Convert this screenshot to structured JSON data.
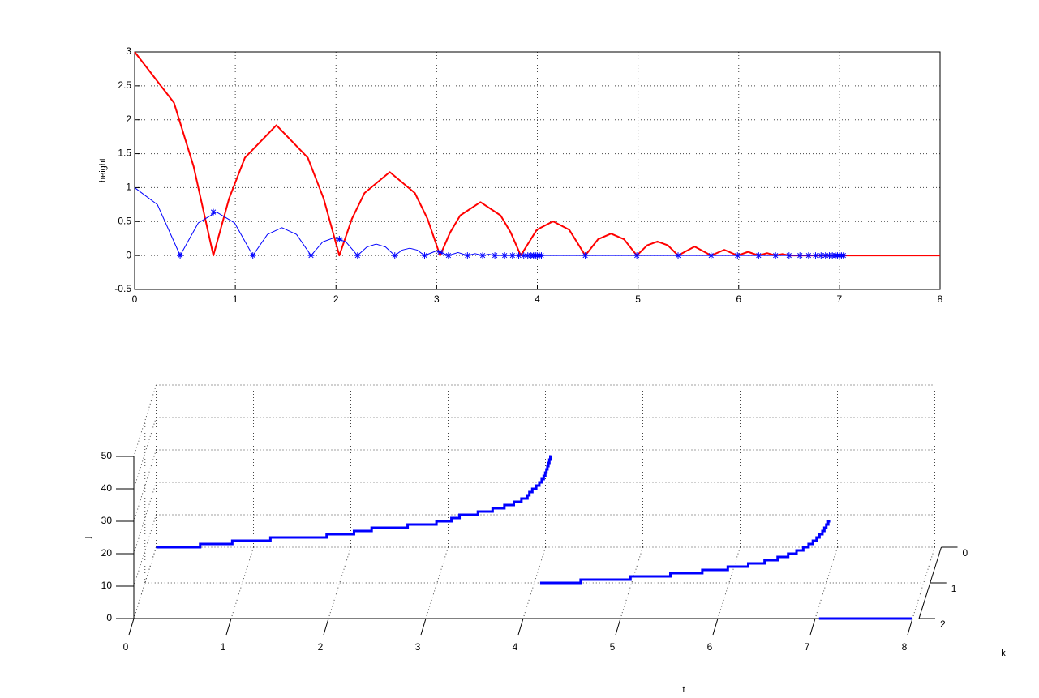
{
  "chart_data": [
    {
      "type": "line",
      "ylabel": "height",
      "xlim": [
        0,
        8
      ],
      "ylim": [
        -0.5,
        3
      ],
      "xticks": [
        0,
        1,
        2,
        3,
        4,
        5,
        6,
        7,
        8
      ],
      "yticks": [
        -0.5,
        0,
        0.5,
        1,
        1.5,
        2,
        2.5,
        3
      ],
      "grid": true,
      "series": [
        {
          "color": "#ff0000",
          "linewidth": 2,
          "x": [
            0,
            0.391,
            0.586,
            0.782,
            0.938,
            1.095,
            1.408,
            1.72,
            1.877,
            2.033,
            2.158,
            2.283,
            2.534,
            2.784,
            2.909,
            3.034,
            3.134,
            3.234,
            3.435,
            3.635,
            3.735,
            3.835,
            3.995,
            4.156,
            4.316,
            4.476,
            4.604,
            4.732,
            4.86,
            4.988,
            5.091,
            5.193,
            5.296,
            5.398,
            5.562,
            5.726,
            5.857,
            5.988,
            6.093,
            6.198,
            6.282,
            6.366,
            6.433,
            6.5,
            7.04,
            8
          ],
          "values": [
            3,
            2.25,
            1.31,
            0,
            0.84,
            1.44,
            1.92,
            1.44,
            0.84,
            0,
            0.54,
            0.92,
            1.229,
            0.92,
            0.54,
            0,
            0.34,
            0.59,
            0.786,
            0.59,
            0.34,
            0,
            0.38,
            0.503,
            0.38,
            0,
            0.24,
            0.322,
            0.24,
            0,
            0.15,
            0.206,
            0.15,
            0,
            0.132,
            0,
            0.084,
            0,
            0.054,
            0,
            0.035,
            0,
            0.022,
            0,
            0,
            0
          ]
        },
        {
          "color": "#0000ff",
          "linewidth": 1,
          "x": [
            0,
            0.226,
            0.452,
            0.632,
            0.813,
            0.993,
            1.174,
            1.319,
            1.463,
            1.608,
            1.752,
            1.868,
            1.983,
            2.099,
            2.214,
            2.307,
            2.399,
            2.492,
            2.584,
            2.658,
            2.732,
            2.806,
            2.88,
            2.999,
            3.117,
            3.212,
            3.306,
            3.382,
            3.457,
            3.518,
            3.578,
            7.04
          ],
          "values": [
            1,
            0.75,
            0,
            0.48,
            0.64,
            0.48,
            0,
            0.31,
            0.41,
            0.31,
            0,
            0.2,
            0.262,
            0.2,
            0,
            0.126,
            0.168,
            0.126,
            0,
            0.08,
            0.107,
            0.08,
            0,
            0.069,
            0,
            0.044,
            0,
            0.028,
            0,
            0.018,
            0,
            0
          ]
        },
        {
          "color": "#0000ff",
          "marker": "*",
          "line": false,
          "x": [
            0.452,
            0.782,
            1.174,
            1.752,
            2.033,
            2.214,
            2.584,
            2.88,
            3.034,
            3.117,
            3.306,
            3.457,
            3.578,
            3.675,
            3.753,
            3.815,
            3.865,
            3.905,
            3.937,
            3.962,
            3.982,
            3.998,
            4.02,
            4.04,
            4.476,
            4.988,
            5.398,
            5.726,
            5.988,
            6.198,
            6.366,
            6.5,
            6.608,
            6.694,
            6.763,
            6.818,
            6.862,
            6.9,
            6.93,
            6.96,
            6.98,
            7,
            7.02,
            7.04
          ],
          "values": [
            0,
            0.64,
            0,
            0,
            0.24,
            0,
            0,
            0,
            0.05,
            0,
            0,
            0,
            0,
            0,
            0,
            0,
            0,
            0,
            0,
            0,
            0,
            0,
            0,
            0,
            0,
            0,
            0,
            0,
            0,
            0,
            0,
            0,
            0,
            0,
            0,
            0,
            0,
            0,
            0,
            0,
            0,
            0,
            0,
            0
          ]
        }
      ]
    },
    {
      "type": "stairs3d",
      "xlabel": "t",
      "ylabel": "j",
      "zlabel": "k",
      "xlim": [
        0,
        8
      ],
      "xticks": [
        0,
        1,
        2,
        3,
        4,
        5,
        6,
        7,
        8
      ],
      "ylim": [
        0,
        50
      ],
      "yticks": [
        0,
        10,
        20,
        30,
        40,
        50
      ],
      "zlim": [
        0,
        2
      ],
      "zticks": [
        0,
        1,
        2
      ],
      "grid": true,
      "series": [
        {
          "color": "#0000ff",
          "k": 0,
          "x": [
            0,
            0.452,
            0.782,
            1.174,
            1.752,
            2.033,
            2.214,
            2.584,
            2.88,
            3.034,
            3.117,
            3.306,
            3.457,
            3.578,
            3.675,
            3.753,
            3.815,
            3.835,
            3.865,
            3.905,
            3.937,
            3.962,
            3.982,
            3.998,
            4.01,
            4.02,
            4.03,
            4.04,
            4.05,
            4.06
          ],
          "values": [
            0,
            1,
            2,
            3,
            4,
            5,
            6,
            7,
            8,
            9,
            10,
            11,
            12,
            13,
            14,
            15,
            16,
            17,
            18,
            19,
            20,
            21,
            22,
            23,
            24,
            25,
            26,
            27,
            28,
            28
          ]
        },
        {
          "color": "#0000ff",
          "k": 1,
          "x": [
            4.06,
            4.476,
            4.988,
            5.398,
            5.726,
            5.988,
            6.198,
            6.366,
            6.5,
            6.608,
            6.694,
            6.763,
            6.818,
            6.862,
            6.9,
            6.93,
            6.96,
            6.98,
            7,
            7.02,
            7.04
          ],
          "values": [
            0,
            1,
            2,
            3,
            4,
            5,
            6,
            7,
            8,
            9,
            10,
            11,
            12,
            13,
            14,
            15,
            16,
            17,
            18,
            19,
            19
          ]
        },
        {
          "color": "#0000ff",
          "k": 2,
          "x": [
            7.04,
            8
          ],
          "values": [
            0,
            0
          ]
        }
      ]
    }
  ]
}
